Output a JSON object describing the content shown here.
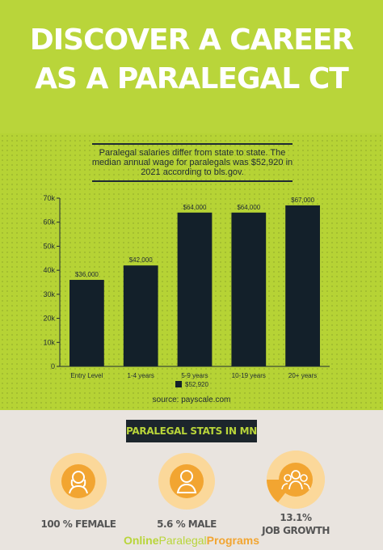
{
  "header": {
    "title": "DISCOVER A CAREER AS A PARALEGAL CT"
  },
  "intro": {
    "text": "Paralegal salaries differ from state to state. The median annual wage for paralegals was $52,920 in 2021 according to bls.gov."
  },
  "chart_data": {
    "type": "bar",
    "categories": [
      "Entry Level",
      "1-4 years",
      "5-9 years",
      "10-19 years",
      "20+ years"
    ],
    "values": [
      36000,
      42000,
      64000,
      64000,
      67000
    ],
    "data_labels": [
      "$36,000",
      "$42,000",
      "$64,000",
      "$64,000",
      "$67,000"
    ],
    "y_ticks": [
      0,
      10000,
      20000,
      30000,
      40000,
      50000,
      60000,
      70000
    ],
    "y_tick_labels": [
      "0",
      "10k",
      "20k",
      "30k",
      "40k",
      "50k",
      "60k",
      "70k"
    ],
    "ylim": [
      0,
      70000
    ],
    "legend": {
      "label": "$52,920",
      "placement": "bottom-center"
    },
    "bar_color": "#13202a",
    "grid": false
  },
  "source": "source: payscale.com",
  "stats": {
    "title": "PARALEGAL STATS IN MN",
    "items": [
      {
        "label": "100 % FEMALE",
        "icon": "female-user-icon"
      },
      {
        "label": "5.6 % MALE",
        "icon": "male-user-icon"
      },
      {
        "label_line1": "13.1%",
        "label_line2": "JOB GROWTH",
        "icon": "group-icon"
      }
    ]
  },
  "brand": {
    "part1": "Online",
    "part2": "Paralegal",
    "part3": "Programs"
  },
  "colors": {
    "accent": "#b9d53a",
    "dark": "#1c252c",
    "orange": "#f2a531",
    "light_orange": "#fbd89a"
  }
}
